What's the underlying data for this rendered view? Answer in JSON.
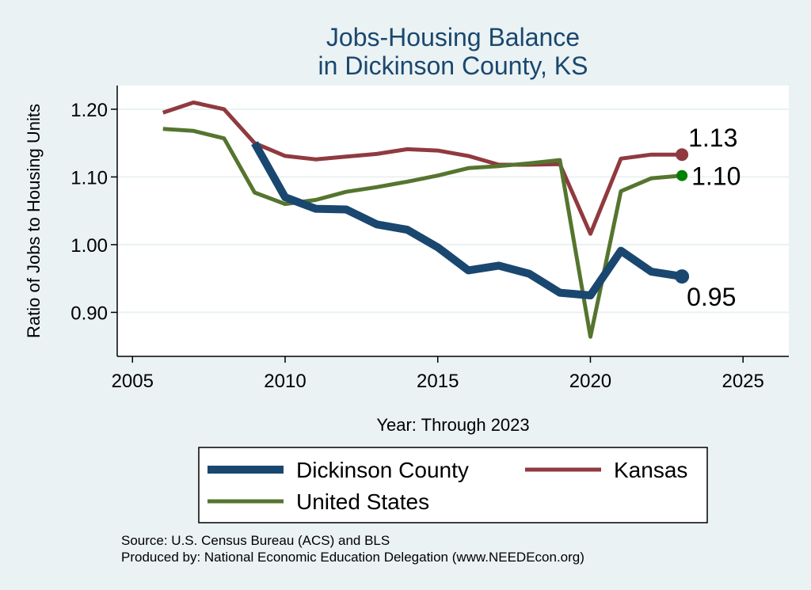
{
  "chart_data": {
    "type": "line",
    "title_lines": [
      "Jobs-Housing Balance",
      "in Dickinson County, KS"
    ],
    "xlabel": "Year: Through 2023",
    "ylabel": "Ratio of Jobs to Housing Units",
    "xlim": [
      2004.5,
      2026.5
    ],
    "ylim": [
      0.835,
      1.235
    ],
    "xticks": [
      2005,
      2010,
      2015,
      2020,
      2025
    ],
    "yticks": [
      0.9,
      1.0,
      1.1,
      1.2
    ],
    "ytick_labels": [
      "0.90",
      "1.00",
      "1.10",
      "1.20"
    ],
    "grid": true,
    "series": [
      {
        "name": "Kansas",
        "color": "#903a3f",
        "width": 5,
        "x": [
          2006,
          2007,
          2008,
          2009,
          2010,
          2011,
          2012,
          2013,
          2014,
          2015,
          2016,
          2017,
          2018,
          2019,
          2020,
          2021,
          2022,
          2023
        ],
        "values": [
          1.195,
          1.21,
          1.2,
          1.15,
          1.131,
          1.126,
          1.13,
          1.134,
          1.141,
          1.139,
          1.131,
          1.118,
          1.118,
          1.119,
          1.016,
          1.127,
          1.133,
          1.133
        ],
        "end_label": "1.13",
        "end_marker_color": "#903a3f"
      },
      {
        "name": "United States",
        "color": "#55752f",
        "width": 5,
        "x": [
          2006,
          2007,
          2008,
          2009,
          2010,
          2011,
          2012,
          2013,
          2014,
          2015,
          2016,
          2017,
          2018,
          2019,
          2020,
          2021,
          2022,
          2023
        ],
        "values": [
          1.171,
          1.168,
          1.157,
          1.077,
          1.06,
          1.066,
          1.078,
          1.085,
          1.093,
          1.102,
          1.113,
          1.116,
          1.12,
          1.125,
          0.864,
          1.079,
          1.098,
          1.102
        ],
        "end_label": "1.10",
        "end_marker_color": "#008000"
      },
      {
        "name": "Dickinson County",
        "color": "#1a476f",
        "width": 10,
        "x": [
          2009,
          2010,
          2011,
          2012,
          2013,
          2014,
          2015,
          2016,
          2017,
          2018,
          2019,
          2020,
          2021,
          2022,
          2023
        ],
        "values": [
          1.15,
          1.07,
          1.053,
          1.052,
          1.03,
          1.022,
          0.996,
          0.962,
          0.969,
          0.957,
          0.929,
          0.925,
          0.991,
          0.96,
          0.953
        ],
        "end_label": "0.95",
        "end_marker_color": "#1a476f"
      }
    ],
    "legend": {
      "placement": "bottom",
      "entries": [
        "Dickinson County",
        "Kansas",
        "United States"
      ]
    }
  },
  "source": {
    "line1": "Source: U.S. Census Bureau (ACS) and BLS",
    "line2": "Produced by: National Economic Education Delegation (www.NEEDEcon.org)"
  }
}
